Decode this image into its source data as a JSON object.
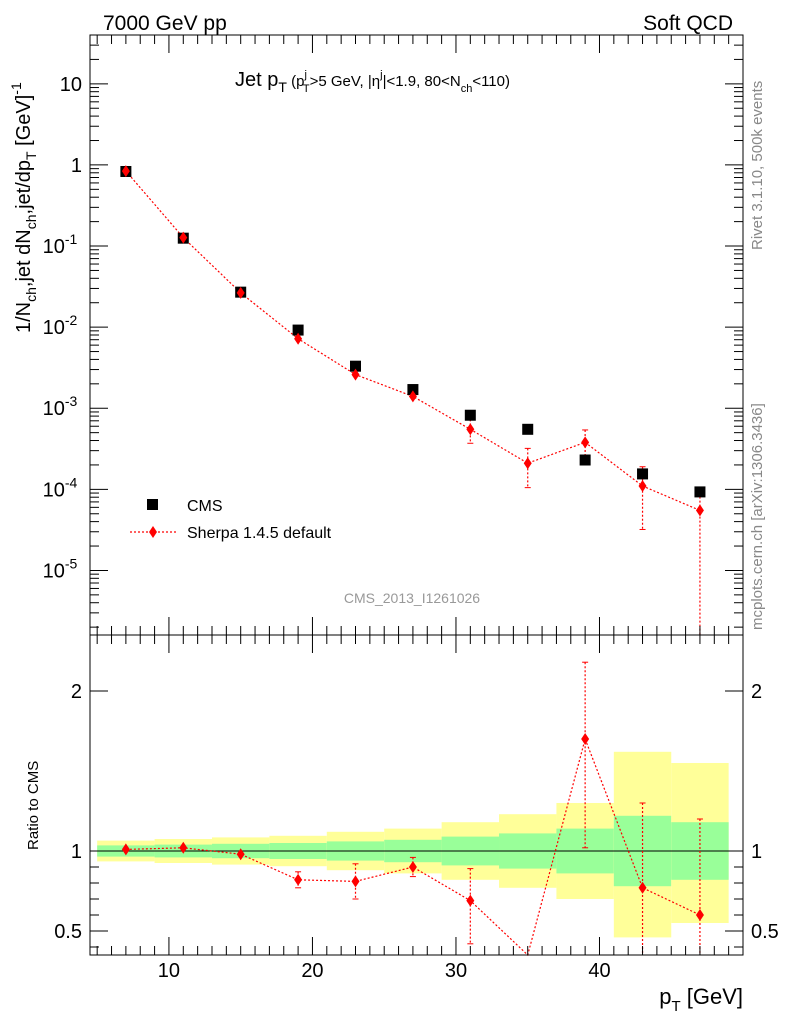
{
  "header": {
    "left": "7000 GeV pp",
    "right": "Soft QCD"
  },
  "side_labels": {
    "rivet": "Rivet 3.1.10,  500k events",
    "source": "mcplots.cern.ch [arXiv:1306.3436]"
  },
  "watermark": "CMS_2013_I1261026",
  "colors": {
    "data": "#000000",
    "mc": "#ff0000",
    "band_inner": "#99ff99",
    "band_outer": "#ffff99"
  },
  "chart_data": [
    {
      "type": "scatter",
      "panel": "main",
      "title": "Jet pT (pTj>5 GeV, |ηj|<1.9, 80<Nch<110)",
      "ylabel": "1/Nch,jet dNch,jet/dpT [GeV]^-1",
      "yscale": "log",
      "ylim": [
        1.6e-06,
        40
      ],
      "xlim": [
        4.5,
        50
      ],
      "ytick_labels": [
        "10",
        "1",
        "10^-1",
        "10^-2",
        "10^-3",
        "10^-4",
        "10^-5"
      ],
      "legend_position": "bottom-left",
      "series": [
        {
          "name": "CMS",
          "marker": "square",
          "x": [
            7,
            11,
            15,
            19,
            23,
            27,
            31,
            35,
            39,
            43,
            47
          ],
          "y": [
            0.83,
            0.125,
            0.027,
            0.0092,
            0.0033,
            0.0017,
            0.00082,
            0.00055,
            0.00023,
            0.000155,
            9.3e-05
          ]
        },
        {
          "name": "Sherpa 1.4.5 default",
          "marker": "diamond",
          "line": "dotted",
          "x": [
            7,
            11,
            15,
            19,
            23,
            27,
            31,
            35,
            39,
            43,
            47
          ],
          "y": [
            0.84,
            0.127,
            0.0265,
            0.0072,
            0.0026,
            0.0014,
            0.00055,
            0.00021,
            0.00038,
            0.00011,
            5.5e-05
          ],
          "err_low": [
            0.84,
            0.127,
            0.0265,
            0.0072,
            0.0026,
            0.0014,
            0.00037,
            0.000105,
            0.00026,
            3.2e-05,
            1.2e-06
          ],
          "err_high": [
            0.84,
            0.127,
            0.0265,
            0.0072,
            0.0026,
            0.0014,
            0.00073,
            0.00032,
            0.00054,
            0.00019,
            0.000102
          ]
        }
      ]
    },
    {
      "type": "line",
      "panel": "ratio",
      "ylabel": "Ratio to CMS",
      "xlabel": "pT [GeV]",
      "xlim": [
        4.5,
        50
      ],
      "ylim": [
        0.35,
        2.35
      ],
      "reference": 1,
      "xtick_labels": [
        "10",
        "20",
        "30",
        "40"
      ],
      "ytick_labels": [
        "0.5",
        "1",
        "2"
      ],
      "bands": {
        "bin_edges": [
          5,
          9,
          13,
          17,
          21,
          25,
          29,
          33,
          37,
          41,
          45,
          49
        ],
        "inner_low": [
          0.965,
          0.96,
          0.955,
          0.95,
          0.94,
          0.93,
          0.91,
          0.89,
          0.86,
          0.78,
          0.82
        ],
        "inner_high": [
          1.035,
          1.04,
          1.045,
          1.05,
          1.06,
          1.07,
          1.09,
          1.11,
          1.14,
          1.22,
          1.18
        ],
        "outer_low": [
          0.935,
          0.925,
          0.915,
          0.905,
          0.88,
          0.86,
          0.82,
          0.77,
          0.7,
          0.46,
          0.55
        ],
        "outer_high": [
          1.065,
          1.075,
          1.085,
          1.095,
          1.12,
          1.14,
          1.18,
          1.23,
          1.3,
          1.62,
          1.55
        ]
      },
      "series": [
        {
          "name": "Sherpa 1.4.5 default",
          "x": [
            7,
            11,
            15,
            19,
            23,
            27,
            31,
            35,
            39,
            43,
            47
          ],
          "y": [
            1.01,
            1.02,
            0.98,
            0.82,
            0.81,
            0.9,
            0.69,
            0.33,
            1.7,
            0.77,
            0.6
          ],
          "err_low": [
            1.01,
            1.02,
            0.98,
            0.77,
            0.7,
            0.84,
            0.42,
            0.33,
            1.02,
            0.3,
            0.3
          ],
          "err_high": [
            1.01,
            1.02,
            0.98,
            0.87,
            0.92,
            0.96,
            0.89,
            0.33,
            2.18,
            1.3,
            1.2
          ]
        }
      ]
    }
  ]
}
